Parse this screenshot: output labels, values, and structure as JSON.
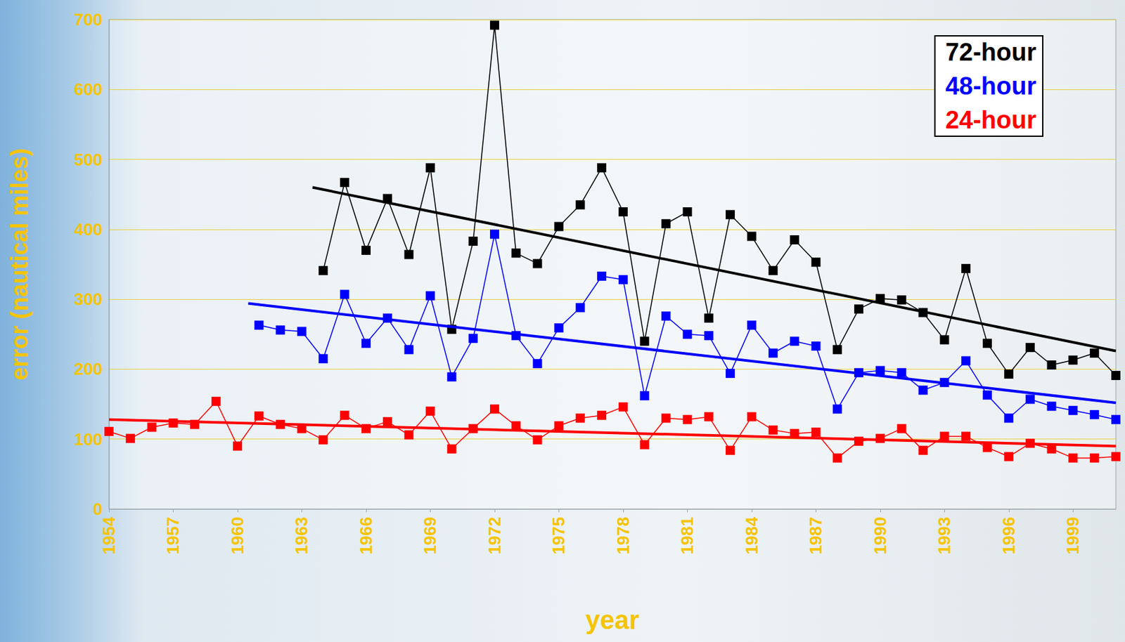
{
  "chart_data": {
    "type": "line",
    "x_label": "year",
    "y_label": "error (nautical miles)",
    "x": [
      1954,
      1955,
      1956,
      1957,
      1958,
      1959,
      1960,
      1961,
      1962,
      1963,
      1964,
      1965,
      1966,
      1967,
      1968,
      1969,
      1970,
      1971,
      1972,
      1973,
      1974,
      1975,
      1976,
      1977,
      1978,
      1979,
      1980,
      1981,
      1982,
      1983,
      1984,
      1985,
      1986,
      1987,
      1988,
      1989,
      1990,
      1991,
      1992,
      1993,
      1994,
      1995,
      1996,
      1997,
      1998,
      1999,
      2000,
      2001
    ],
    "series": [
      {
        "name": "72-hour",
        "color": "#000000",
        "marker": "square",
        "values": [
          null,
          null,
          null,
          null,
          null,
          null,
          null,
          null,
          null,
          null,
          341,
          467,
          370,
          444,
          364,
          488,
          257,
          383,
          692,
          366,
          351,
          404,
          435,
          488,
          425,
          240,
          408,
          425,
          273,
          421,
          390,
          341,
          385,
          353,
          228,
          286,
          301,
          299,
          281,
          242,
          344,
          237,
          193,
          231,
          206,
          213,
          223,
          191
        ],
        "trend": {
          "x": [
            1963.5,
            2001
          ],
          "y": [
            460,
            226
          ]
        }
      },
      {
        "name": "48-hour",
        "color": "#0000ff",
        "marker": "square",
        "values": [
          null,
          null,
          null,
          null,
          null,
          null,
          null,
          263,
          256,
          254,
          215,
          307,
          237,
          273,
          228,
          305,
          189,
          244,
          393,
          248,
          208,
          259,
          288,
          333,
          328,
          162,
          276,
          250,
          248,
          194,
          263,
          223,
          240,
          233,
          143,
          195,
          198,
          195,
          170,
          181,
          212,
          163,
          130,
          157,
          147,
          141,
          135,
          128
        ],
        "trend": {
          "x": [
            1960.5,
            2001
          ],
          "y": [
            294,
            152
          ]
        }
      },
      {
        "name": "24-hour",
        "color": "#ff0000",
        "marker": "square",
        "values": [
          111,
          101,
          117,
          123,
          121,
          154,
          90,
          133,
          121,
          115,
          99,
          134,
          115,
          125,
          106,
          140,
          86,
          115,
          143,
          119,
          99,
          119,
          130,
          134,
          146,
          92,
          130,
          128,
          132,
          84,
          132,
          113,
          108,
          110,
          73,
          97,
          101,
          115,
          84,
          104,
          104,
          88,
          75,
          94,
          86,
          73,
          73,
          75
        ],
        "trend": {
          "x": [
            1954,
            2001
          ],
          "y": [
            128,
            90
          ]
        }
      }
    ],
    "xlim": [
      1954,
      2001
    ],
    "xticks": [
      1954,
      1957,
      1960,
      1963,
      1966,
      1969,
      1972,
      1975,
      1978,
      1981,
      1984,
      1987,
      1990,
      1993,
      1996,
      1999
    ],
    "ylim": [
      0,
      700
    ],
    "yticks": [
      0,
      100,
      200,
      300,
      400,
      500,
      600,
      700
    ],
    "grid": true,
    "legend": "top right"
  }
}
